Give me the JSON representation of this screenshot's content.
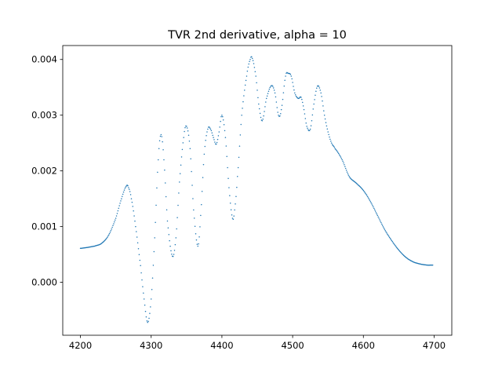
{
  "chart_data": {
    "type": "scatter",
    "title": "TVR 2nd derivative, alpha = 10",
    "xlabel": "",
    "ylabel": "",
    "xlim": [
      4175,
      4725
    ],
    "ylim": [
      -0.00095,
      0.00425
    ],
    "xticks": [
      4200,
      4300,
      4400,
      4500,
      4600,
      4700
    ],
    "yticks": [
      0.0,
      0.001,
      0.002,
      0.003,
      0.004
    ],
    "xtick_labels": [
      "4200",
      "4300",
      "4400",
      "4500",
      "4600",
      "4700"
    ],
    "ytick_labels": [
      "0.000",
      "0.001",
      "0.002",
      "0.003",
      "0.004"
    ],
    "grid": false,
    "color": "#1f77b4",
    "series": [
      {
        "x": [
          4200,
          4220,
          4230,
          4240,
          4250,
          4258,
          4265,
          4268,
          4272,
          4278,
          4285,
          4290,
          4295,
          4300,
          4305,
          4310,
          4314,
          4318,
          4323,
          4330,
          4335,
          4340,
          4346,
          4350,
          4355,
          4360,
          4366,
          4370,
          4375,
          4380,
          4384,
          4388,
          4392,
          4396,
          4400,
          4405,
          4410,
          4415,
          4418,
          4422,
          4428,
          4435,
          4440,
          4443,
          4448,
          4452,
          4457,
          4463,
          4470,
          4475,
          4480,
          4484,
          4490,
          4494,
          4498,
          4503,
          4508,
          4512,
          4516,
          4520,
          4525,
          4530,
          4535,
          4540,
          4545,
          4550,
          4555,
          4560,
          4570,
          4580,
          4590,
          4600,
          4610,
          4620,
          4630,
          4640,
          4650,
          4660,
          4670,
          4680,
          4690,
          4698
        ],
        "y": [
          0.00061,
          0.00065,
          0.0007,
          0.00085,
          0.00115,
          0.0015,
          0.00173,
          0.0017,
          0.0015,
          0.001,
          0.0003,
          -0.0003,
          -0.00072,
          -0.0003,
          0.0008,
          0.0022,
          0.00265,
          0.0022,
          0.0011,
          0.00047,
          0.0008,
          0.0018,
          0.0026,
          0.0028,
          0.0024,
          0.0013,
          0.00065,
          0.0012,
          0.0023,
          0.00275,
          0.00275,
          0.0026,
          0.00248,
          0.0027,
          0.003,
          0.0026,
          0.0017,
          0.00115,
          0.0013,
          0.0019,
          0.003,
          0.0037,
          0.004,
          0.00402,
          0.0037,
          0.0032,
          0.0029,
          0.0033,
          0.00353,
          0.0034,
          0.003,
          0.0031,
          0.0037,
          0.00375,
          0.0037,
          0.0034,
          0.0033,
          0.00332,
          0.0031,
          0.0028,
          0.00275,
          0.0032,
          0.00352,
          0.0034,
          0.003,
          0.0027,
          0.0025,
          0.0024,
          0.0022,
          0.0019,
          0.00178,
          0.00165,
          0.00145,
          0.0012,
          0.00095,
          0.00075,
          0.00058,
          0.00045,
          0.00037,
          0.00033,
          0.00031,
          0.00031
        ]
      }
    ]
  }
}
